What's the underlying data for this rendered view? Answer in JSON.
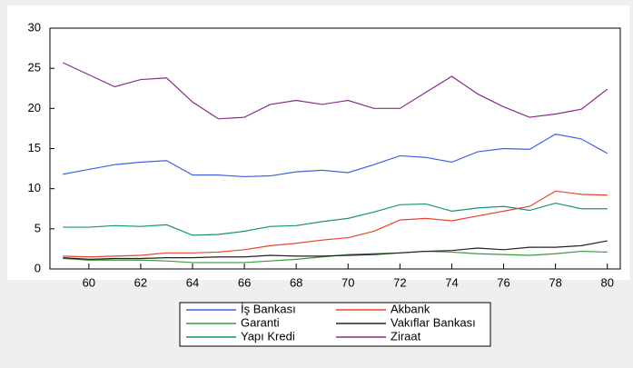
{
  "chart_data": {
    "type": "line",
    "x": [
      59,
      60,
      61,
      62,
      63,
      64,
      65,
      66,
      67,
      68,
      69,
      70,
      71,
      72,
      73,
      74,
      75,
      76,
      77,
      78,
      79,
      80
    ],
    "xlim": [
      58.5,
      80.5
    ],
    "xticks": [
      60,
      62,
      64,
      66,
      68,
      70,
      72,
      74,
      76,
      78,
      80
    ],
    "ylim": [
      0,
      30
    ],
    "yticks": [
      0,
      5,
      10,
      15,
      20,
      25,
      30
    ],
    "legend": "bottom",
    "series": [
      {
        "name": "İş Bankası",
        "color": "#3f63e0",
        "values": [
          11.8,
          12.4,
          13.0,
          13.3,
          13.5,
          11.7,
          11.7,
          11.5,
          11.6,
          12.1,
          12.3,
          12.0,
          13.0,
          14.1,
          13.9,
          13.3,
          14.6,
          15.0,
          14.9,
          16.8,
          16.2,
          14.4
        ]
      },
      {
        "name": "Akbank",
        "color": "#e8442a",
        "values": [
          1.6,
          1.5,
          1.6,
          1.7,
          2.0,
          2.0,
          2.1,
          2.4,
          2.9,
          3.2,
          3.6,
          3.9,
          4.7,
          6.1,
          6.3,
          6.0,
          6.6,
          7.2,
          7.8,
          9.7,
          9.3,
          9.2
        ]
      },
      {
        "name": "Garanti",
        "color": "#3a9a3a",
        "values": [
          1.3,
          1.1,
          1.1,
          1.1,
          1.0,
          0.8,
          0.8,
          0.8,
          1.0,
          1.2,
          1.5,
          1.8,
          1.9,
          2.0,
          2.2,
          2.1,
          1.9,
          1.8,
          1.7,
          1.9,
          2.2,
          2.1
        ]
      },
      {
        "name": "Vakıflar Bankası",
        "color": "#222222",
        "values": [
          1.4,
          1.2,
          1.3,
          1.3,
          1.4,
          1.4,
          1.5,
          1.5,
          1.7,
          1.6,
          1.6,
          1.7,
          1.8,
          2.0,
          2.2,
          2.3,
          2.6,
          2.4,
          2.7,
          2.7,
          2.9,
          3.5
        ]
      },
      {
        "name": "Yapı Kredi",
        "color": "#18907a",
        "values": [
          5.2,
          5.2,
          5.4,
          5.3,
          5.5,
          4.2,
          4.3,
          4.7,
          5.3,
          5.4,
          5.9,
          6.3,
          7.1,
          8.0,
          8.1,
          7.2,
          7.6,
          7.8,
          7.3,
          8.2,
          7.5,
          7.5
        ]
      },
      {
        "name": "Ziraat",
        "color": "#8a2b8a",
        "values": [
          25.7,
          24.2,
          22.7,
          23.6,
          23.8,
          20.8,
          18.7,
          18.9,
          20.5,
          21.0,
          20.5,
          21.0,
          20.0,
          20.0,
          22.0,
          24.0,
          21.8,
          20.2,
          18.9,
          19.3,
          19.9,
          22.4
        ]
      }
    ]
  }
}
